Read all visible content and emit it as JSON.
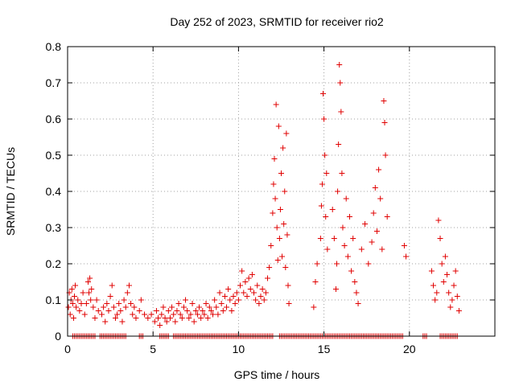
{
  "chart_data": {
    "type": "scatter",
    "title": "Day 252 of 2023, SRMTID for receiver rio2",
    "xlabel": "GPS time / hours",
    "ylabel": "SRMTID / TECUs",
    "xlim": [
      0,
      25
    ],
    "ylim": [
      0,
      0.8
    ],
    "x_ticks": [
      0,
      5,
      10,
      15,
      20
    ],
    "x_tick_labels": [
      "0",
      "5",
      "10",
      "15",
      "20"
    ],
    "y_ticks": [
      0,
      0.1,
      0.2,
      0.3,
      0.4,
      0.5,
      0.6,
      0.7,
      0.8
    ],
    "y_tick_labels": [
      "0",
      "0.1",
      "0.2",
      "0.3",
      "0.4",
      "0.5",
      "0.6",
      "0.7",
      "0.8"
    ],
    "grid": true,
    "marker": "plus",
    "colors": {
      "series": "#e00000",
      "grid": "#a0a0a0",
      "axis": "#000000"
    },
    "series": [
      {
        "name": "SRMTID",
        "points": [
          [
            0.05,
            0.08
          ],
          [
            0.1,
            0.12
          ],
          [
            0.15,
            0.06
          ],
          [
            0.2,
            0.1
          ],
          [
            0.25,
            0.13
          ],
          [
            0.3,
            0.09
          ],
          [
            0.35,
            0.05
          ],
          [
            0.4,
            0.11
          ],
          [
            0.45,
            0.14
          ],
          [
            0.5,
            0.08
          ],
          [
            0.6,
            0.1
          ],
          [
            0.7,
            0.07
          ],
          [
            0.8,
            0.09
          ],
          [
            0.9,
            0.12
          ],
          [
            1.0,
            0.06
          ],
          [
            1.1,
            0.09
          ],
          [
            1.2,
            0.15
          ],
          [
            1.25,
            0.12
          ],
          [
            1.3,
            0.16
          ],
          [
            1.35,
            0.1
          ],
          [
            1.4,
            0.13
          ],
          [
            1.5,
            0.08
          ],
          [
            1.6,
            0.05
          ],
          [
            1.7,
            0.1
          ],
          [
            1.8,
            0.07
          ],
          [
            2.0,
            0.06
          ],
          [
            2.1,
            0.08
          ],
          [
            2.2,
            0.04
          ],
          [
            2.3,
            0.09
          ],
          [
            2.4,
            0.07
          ],
          [
            2.5,
            0.11
          ],
          [
            2.6,
            0.14
          ],
          [
            2.7,
            0.08
          ],
          [
            2.8,
            0.05
          ],
          [
            2.9,
            0.06
          ],
          [
            3.0,
            0.09
          ],
          [
            3.1,
            0.07
          ],
          [
            3.2,
            0.04
          ],
          [
            3.3,
            0.1
          ],
          [
            3.4,
            0.08
          ],
          [
            3.5,
            0.12
          ],
          [
            3.6,
            0.14
          ],
          [
            3.7,
            0.09
          ],
          [
            3.8,
            0.06
          ],
          [
            3.9,
            0.08
          ],
          [
            4.0,
            0.05
          ],
          [
            4.2,
            0.07
          ],
          [
            4.3,
            0.1
          ],
          [
            4.5,
            0.06
          ],
          [
            4.7,
            0.05
          ],
          [
            4.9,
            0.06
          ],
          [
            5.1,
            0.04
          ],
          [
            5.2,
            0.07
          ],
          [
            5.3,
            0.05
          ],
          [
            5.4,
            0.03
          ],
          [
            5.5,
            0.06
          ],
          [
            5.6,
            0.08
          ],
          [
            5.7,
            0.05
          ],
          [
            5.8,
            0.04
          ],
          [
            5.9,
            0.07
          ],
          [
            6.0,
            0.05
          ],
          [
            6.1,
            0.08
          ],
          [
            6.2,
            0.06
          ],
          [
            6.3,
            0.04
          ],
          [
            6.4,
            0.07
          ],
          [
            6.5,
            0.09
          ],
          [
            6.6,
            0.06
          ],
          [
            6.7,
            0.05
          ],
          [
            6.8,
            0.08
          ],
          [
            6.9,
            0.1
          ],
          [
            7.0,
            0.07
          ],
          [
            7.1,
            0.05
          ],
          [
            7.2,
            0.06
          ],
          [
            7.3,
            0.09
          ],
          [
            7.4,
            0.04
          ],
          [
            7.5,
            0.07
          ],
          [
            7.6,
            0.06
          ],
          [
            7.7,
            0.08
          ],
          [
            7.8,
            0.05
          ],
          [
            7.9,
            0.07
          ],
          [
            8.0,
            0.06
          ],
          [
            8.1,
            0.09
          ],
          [
            8.2,
            0.05
          ],
          [
            8.3,
            0.08
          ],
          [
            8.4,
            0.07
          ],
          [
            8.5,
            0.06
          ],
          [
            8.6,
            0.1
          ],
          [
            8.7,
            0.08
          ],
          [
            8.8,
            0.06
          ],
          [
            8.9,
            0.12
          ],
          [
            9.0,
            0.09
          ],
          [
            9.1,
            0.07
          ],
          [
            9.2,
            0.11
          ],
          [
            9.3,
            0.08
          ],
          [
            9.4,
            0.13
          ],
          [
            9.5,
            0.1
          ],
          [
            9.6,
            0.07
          ],
          [
            9.7,
            0.11
          ],
          [
            9.8,
            0.09
          ],
          [
            9.9,
            0.12
          ],
          [
            10.0,
            0.1
          ],
          [
            10.1,
            0.14
          ],
          [
            10.2,
            0.18
          ],
          [
            10.3,
            0.12
          ],
          [
            10.4,
            0.15
          ],
          [
            10.5,
            0.11
          ],
          [
            10.6,
            0.16
          ],
          [
            10.7,
            0.13
          ],
          [
            10.8,
            0.17
          ],
          [
            10.9,
            0.12
          ],
          [
            11.0,
            0.1
          ],
          [
            11.1,
            0.14
          ],
          [
            11.2,
            0.09
          ],
          [
            11.3,
            0.11
          ],
          [
            11.4,
            0.13
          ],
          [
            11.5,
            0.1
          ],
          [
            11.6,
            0.12
          ],
          [
            11.7,
            0.16
          ],
          [
            11.8,
            0.19
          ],
          [
            11.9,
            0.25
          ],
          [
            12.0,
            0.34
          ],
          [
            12.05,
            0.42
          ],
          [
            12.1,
            0.49
          ],
          [
            12.15,
            0.38
          ],
          [
            12.2,
            0.64
          ],
          [
            12.25,
            0.3
          ],
          [
            12.3,
            0.21
          ],
          [
            12.35,
            0.58
          ],
          [
            12.4,
            0.27
          ],
          [
            12.45,
            0.35
          ],
          [
            12.5,
            0.45
          ],
          [
            12.55,
            0.22
          ],
          [
            12.6,
            0.52
          ],
          [
            12.65,
            0.31
          ],
          [
            12.7,
            0.4
          ],
          [
            12.75,
            0.19
          ],
          [
            12.8,
            0.56
          ],
          [
            12.85,
            0.28
          ],
          [
            12.9,
            0.14
          ],
          [
            12.95,
            0.09
          ],
          [
            14.4,
            0.08
          ],
          [
            14.5,
            0.15
          ],
          [
            14.6,
            0.2
          ],
          [
            14.8,
            0.27
          ],
          [
            14.85,
            0.36
          ],
          [
            14.9,
            0.42
          ],
          [
            14.95,
            0.67
          ],
          [
            15.0,
            0.6
          ],
          [
            15.05,
            0.5
          ],
          [
            15.1,
            0.33
          ],
          [
            15.15,
            0.45
          ],
          [
            15.2,
            0.24
          ],
          [
            15.5,
            0.35
          ],
          [
            15.6,
            0.27
          ],
          [
            15.7,
            0.13
          ],
          [
            15.75,
            0.2
          ],
          [
            15.8,
            0.4
          ],
          [
            15.85,
            0.53
          ],
          [
            15.9,
            0.75
          ],
          [
            15.95,
            0.7
          ],
          [
            16.0,
            0.62
          ],
          [
            16.05,
            0.45
          ],
          [
            16.1,
            0.3
          ],
          [
            16.2,
            0.25
          ],
          [
            16.3,
            0.38
          ],
          [
            16.4,
            0.22
          ],
          [
            16.5,
            0.33
          ],
          [
            16.6,
            0.18
          ],
          [
            16.7,
            0.27
          ],
          [
            16.8,
            0.15
          ],
          [
            16.9,
            0.12
          ],
          [
            17.0,
            0.09
          ],
          [
            17.2,
            0.24
          ],
          [
            17.4,
            0.31
          ],
          [
            17.6,
            0.2
          ],
          [
            17.8,
            0.26
          ],
          [
            17.9,
            0.34
          ],
          [
            18.0,
            0.41
          ],
          [
            18.1,
            0.29
          ],
          [
            18.2,
            0.46
          ],
          [
            18.3,
            0.38
          ],
          [
            18.4,
            0.24
          ],
          [
            18.5,
            0.65
          ],
          [
            18.55,
            0.59
          ],
          [
            18.6,
            0.5
          ],
          [
            18.7,
            0.33
          ],
          [
            19.7,
            0.25
          ],
          [
            19.8,
            0.22
          ],
          [
            21.3,
            0.18
          ],
          [
            21.4,
            0.14
          ],
          [
            21.5,
            0.1
          ],
          [
            21.6,
            0.12
          ],
          [
            21.7,
            0.32
          ],
          [
            21.8,
            0.27
          ],
          [
            21.9,
            0.2
          ],
          [
            22.0,
            0.15
          ],
          [
            22.1,
            0.22
          ],
          [
            22.2,
            0.17
          ],
          [
            22.3,
            0.12
          ],
          [
            22.4,
            0.08
          ],
          [
            22.5,
            0.1
          ],
          [
            22.6,
            0.14
          ],
          [
            22.7,
            0.18
          ],
          [
            22.8,
            0.11
          ],
          [
            22.9,
            0.07
          ]
        ],
        "zero_band": [
          [
            0.3,
            1.6
          ],
          [
            1.9,
            3.4
          ],
          [
            4.2,
            4.4
          ],
          [
            5.4,
            5.9
          ],
          [
            6.2,
            12.0
          ],
          [
            12.4,
            19.6
          ],
          [
            20.8,
            21.0
          ],
          [
            21.8,
            22.8
          ]
        ]
      }
    ]
  }
}
